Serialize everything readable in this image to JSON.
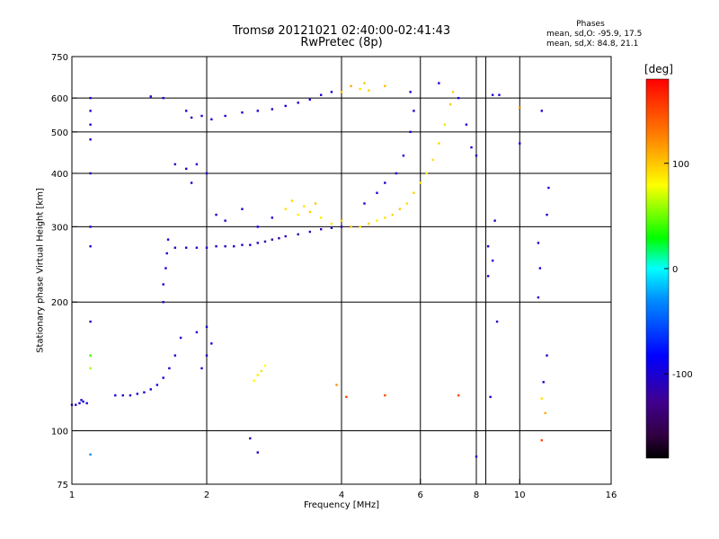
{
  "header": {
    "title_line1": "Tromsø 20121021 02:40:00-02:41:43",
    "title_line2": "RwPretec (8p)",
    "stats_title": "Phases",
    "stats_o": "mean, sd,O: -95.9, 17.5",
    "stats_x": "mean, sd,X: 84.8, 21.1"
  },
  "colorbar": {
    "unit": "[deg]",
    "ticks": [
      {
        "value": 100,
        "label": "100"
      },
      {
        "value": 0,
        "label": "0"
      },
      {
        "value": -100,
        "label": "-100"
      }
    ],
    "range": [
      -180,
      180
    ]
  },
  "chart_data": {
    "type": "scatter",
    "xlabel": "Frequency [MHz]",
    "ylabel": "Stationary phase Virtual Height [km]",
    "x_scale": "log",
    "y_scale": "log",
    "xlim": [
      1,
      16
    ],
    "ylim": [
      75,
      750
    ],
    "x_ticks": [
      {
        "value": 1,
        "label": "1"
      },
      {
        "value": 2,
        "label": "2"
      },
      {
        "value": 4,
        "label": "4"
      },
      {
        "value": 6,
        "label": "6"
      },
      {
        "value": 8,
        "label": "8"
      },
      {
        "value": 10,
        "label": "10"
      },
      {
        "value": 16,
        "label": "16"
      }
    ],
    "y_ticks": [
      {
        "value": 75,
        "label": "75"
      },
      {
        "value": 100,
        "label": "100"
      },
      {
        "value": 200,
        "label": "200"
      },
      {
        "value": 300,
        "label": "300"
      },
      {
        "value": 400,
        "label": "400"
      },
      {
        "value": 500,
        "label": "500"
      },
      {
        "value": 600,
        "label": "600"
      },
      {
        "value": 750,
        "label": "750"
      }
    ],
    "grid_x": [
      2,
      4,
      6,
      8,
      10
    ],
    "grid_y": [
      100,
      200,
      300,
      400,
      500,
      600
    ],
    "extra_vlines": [
      8.4
    ],
    "colormap": "rainbow",
    "color_range": [
      -180,
      180
    ],
    "series": [
      {
        "values": [
          [
            1.0,
            115,
            -100
          ],
          [
            1.02,
            115,
            -105
          ],
          [
            1.04,
            116,
            -98
          ],
          [
            1.06,
            117,
            -100
          ],
          [
            1.08,
            116,
            -95
          ],
          [
            1.25,
            121,
            -100
          ],
          [
            1.3,
            121,
            -98
          ],
          [
            1.35,
            121,
            -102
          ],
          [
            1.4,
            122,
            -100
          ],
          [
            1.45,
            123,
            -98
          ],
          [
            1.5,
            125,
            -100
          ],
          [
            1.55,
            128,
            -97
          ],
          [
            1.6,
            133,
            -100
          ],
          [
            1.65,
            140,
            -95
          ],
          [
            1.7,
            150,
            -100
          ],
          [
            1.75,
            165,
            -98
          ],
          [
            1.6,
            200,
            -100
          ],
          [
            1.6,
            220,
            -96
          ],
          [
            1.62,
            240,
            -100
          ],
          [
            1.63,
            260,
            -102
          ],
          [
            1.64,
            280,
            -98
          ],
          [
            1.7,
            268,
            -110
          ],
          [
            1.8,
            268,
            -105
          ],
          [
            1.9,
            268,
            -108
          ],
          [
            2.0,
            268,
            -100
          ],
          [
            2.1,
            270,
            -105
          ],
          [
            2.2,
            270,
            -110
          ],
          [
            2.3,
            270,
            -100
          ],
          [
            2.4,
            272,
            -100
          ],
          [
            2.5,
            272,
            -98
          ],
          [
            2.6,
            275,
            -105
          ],
          [
            2.7,
            277,
            -110
          ],
          [
            2.8,
            280,
            -112
          ],
          [
            2.9,
            282,
            -115
          ],
          [
            3.0,
            285,
            -112
          ],
          [
            3.2,
            288,
            -115
          ],
          [
            3.4,
            292,
            -110
          ],
          [
            3.6,
            296,
            -115
          ],
          [
            3.8,
            298,
            -110
          ],
          [
            4.0,
            300,
            -115
          ],
          [
            1.5,
            605,
            -100
          ],
          [
            1.6,
            600,
            -100
          ],
          [
            1.8,
            560,
            -100
          ],
          [
            1.85,
            540,
            -105
          ],
          [
            1.95,
            545,
            -100
          ],
          [
            2.05,
            535,
            -100
          ],
          [
            2.2,
            545,
            -100
          ],
          [
            2.4,
            555,
            -98
          ],
          [
            2.6,
            560,
            -100
          ],
          [
            2.8,
            565,
            -105
          ],
          [
            3.0,
            575,
            -100
          ],
          [
            3.2,
            585,
            -100
          ],
          [
            3.4,
            595,
            -98
          ],
          [
            3.6,
            610,
            -100
          ],
          [
            3.8,
            620,
            -95
          ],
          [
            1.1,
            600,
            -100
          ],
          [
            1.1,
            560,
            -100
          ],
          [
            1.1,
            520,
            -102
          ],
          [
            1.1,
            480,
            -100
          ],
          [
            1.1,
            400,
            -105
          ],
          [
            1.1,
            300,
            -100
          ],
          [
            1.1,
            270,
            -98
          ],
          [
            1.1,
            180,
            -100
          ],
          [
            1.1,
            150,
            40
          ],
          [
            1.1,
            140,
            60
          ],
          [
            1.1,
            88,
            -30
          ],
          [
            1.7,
            420,
            -100
          ],
          [
            1.8,
            410,
            -100
          ],
          [
            1.9,
            420,
            -105
          ],
          [
            2.0,
            400,
            -100
          ],
          [
            1.85,
            380,
            -100
          ],
          [
            1.9,
            170,
            -100
          ],
          [
            2.0,
            175,
            -98
          ],
          [
            2.0,
            150,
            -105
          ],
          [
            1.95,
            140,
            -100
          ],
          [
            2.05,
            160,
            -100
          ],
          [
            2.55,
            131,
            80
          ],
          [
            2.6,
            135,
            85
          ],
          [
            2.65,
            138,
            90
          ],
          [
            2.7,
            142,
            80
          ],
          [
            2.1,
            320,
            -105
          ],
          [
            2.2,
            310,
            -100
          ],
          [
            2.4,
            330,
            -100
          ],
          [
            2.6,
            300,
            -95
          ],
          [
            2.8,
            315,
            -100
          ],
          [
            3.0,
            330,
            90
          ],
          [
            3.1,
            345,
            95
          ],
          [
            3.2,
            320,
            85
          ],
          [
            3.3,
            335,
            90
          ],
          [
            3.4,
            325,
            95
          ],
          [
            3.5,
            340,
            100
          ],
          [
            3.6,
            315,
            85
          ],
          [
            3.8,
            305,
            90
          ],
          [
            4.0,
            310,
            100
          ],
          [
            4.2,
            300,
            100
          ],
          [
            4.4,
            300,
            90
          ],
          [
            4.6,
            305,
            95
          ],
          [
            4.8,
            310,
            85
          ],
          [
            5.0,
            315,
            90
          ],
          [
            5.2,
            320,
            95
          ],
          [
            5.4,
            330,
            100
          ],
          [
            5.6,
            340,
            90
          ],
          [
            5.8,
            360,
            95
          ],
          [
            6.0,
            380,
            90
          ],
          [
            6.2,
            400,
            85
          ],
          [
            6.4,
            430,
            90
          ],
          [
            6.6,
            470,
            95
          ],
          [
            6.8,
            520,
            90
          ],
          [
            7.0,
            580,
            100
          ],
          [
            7.1,
            620,
            95
          ],
          [
            4.5,
            340,
            -100
          ],
          [
            4.8,
            360,
            -95
          ],
          [
            5.0,
            380,
            -100
          ],
          [
            5.3,
            400,
            -98
          ],
          [
            5.5,
            440,
            -100
          ],
          [
            5.7,
            500,
            -100
          ],
          [
            5.8,
            560,
            -105
          ],
          [
            5.7,
            620,
            -100
          ],
          [
            6.6,
            650,
            -100
          ],
          [
            7.3,
            600,
            -100
          ],
          [
            7.6,
            520,
            -100
          ],
          [
            7.8,
            460,
            -100
          ],
          [
            8.0,
            440,
            -100
          ],
          [
            4.0,
            620,
            100
          ],
          [
            4.2,
            640,
            110
          ],
          [
            4.4,
            630,
            90
          ],
          [
            4.5,
            650,
            100
          ],
          [
            4.6,
            625,
            95
          ],
          [
            5.0,
            640,
            105
          ],
          [
            8.7,
            610,
            -105
          ],
          [
            9.0,
            610,
            -100
          ],
          [
            10.0,
            470,
            -100
          ],
          [
            10.0,
            570,
            120
          ],
          [
            11.2,
            560,
            -100
          ],
          [
            11.6,
            370,
            -100
          ],
          [
            11.5,
            320,
            -105
          ],
          [
            11.0,
            275,
            -100
          ],
          [
            11.1,
            240,
            -98
          ],
          [
            11.0,
            205,
            -100
          ],
          [
            11.5,
            150,
            -105
          ],
          [
            11.3,
            130,
            -100
          ],
          [
            11.2,
            119,
            90
          ],
          [
            11.4,
            110,
            110
          ],
          [
            11.2,
            95,
            150
          ],
          [
            8.8,
            310,
            -100
          ],
          [
            8.5,
            270,
            -100
          ],
          [
            8.7,
            250,
            -98
          ],
          [
            8.5,
            230,
            -100
          ],
          [
            8.9,
            180,
            -100
          ],
          [
            8.6,
            120,
            -100
          ],
          [
            8.0,
            87,
            -100
          ],
          [
            2.5,
            96,
            -100
          ],
          [
            2.6,
            89,
            -100
          ],
          [
            3.9,
            128,
            120
          ],
          [
            4.1,
            120,
            150
          ],
          [
            5.0,
            121,
            150
          ],
          [
            7.3,
            121,
            150
          ],
          [
            1.05,
            118,
            -100
          ]
        ]
      }
    ]
  }
}
